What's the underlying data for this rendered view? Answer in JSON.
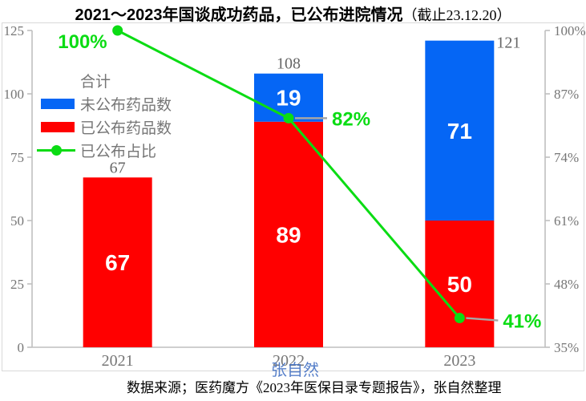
{
  "title": {
    "main": "2021～2023年国谈成功药品，已公布进院情况",
    "note": "（截止23.12.20）"
  },
  "source_text": "数据来源；医药魔方《2023年医保目录专题报告》，张自然整理",
  "watermark_text": "张自然",
  "colors": {
    "red": "#FF0000",
    "blue": "#0566F5",
    "green": "#0BDC14",
    "label_gray": "#767676",
    "axis_line": "#BFBFBF",
    "leader_line": "#A6A6A6",
    "watermark_blue": "#4472C4",
    "bar_value_text": "#FFFFFF",
    "title_black": "#000000"
  },
  "legend": {
    "items": [
      {
        "label": "合计",
        "marker": "none"
      },
      {
        "label": "未公布药品数",
        "marker": "blue-rect"
      },
      {
        "label": "已公布药品数",
        "marker": "red-rect"
      },
      {
        "label": "已公布占比",
        "marker": "green-line-dot"
      }
    ]
  },
  "chart_data": {
    "type": "bar",
    "subtype": "stacked-columns-with-percentage-line",
    "title": "2021～2023年国谈成功药品，已公布进院情况（截止23.12.20）",
    "categories": [
      "2021",
      "2022",
      "2023"
    ],
    "series": [
      {
        "name": "已公布药品数",
        "color": "#FF0000",
        "values": [
          67,
          89,
          50
        ]
      },
      {
        "name": "未公布药品数",
        "color": "#0566F5",
        "values": [
          0,
          19,
          71
        ]
      }
    ],
    "totals": {
      "name": "合计",
      "values": [
        67,
        108,
        121
      ]
    },
    "line_series": {
      "name": "已公布占比",
      "values_pct": [
        100,
        82,
        41
      ],
      "labels": [
        "100%",
        "82%",
        "41%"
      ]
    },
    "left_axis": {
      "ticks": [
        0,
        25,
        50,
        75,
        100,
        125
      ],
      "range": [
        0,
        125
      ]
    },
    "right_axis": {
      "ticks_pct": [
        35,
        48,
        61,
        74,
        87,
        100
      ],
      "tick_labels": [
        "35%",
        "48%",
        "61%",
        "74%",
        "87%",
        "100%"
      ],
      "range": [
        35,
        100
      ]
    },
    "grid": false,
    "legend_position": "inside-upper-left"
  }
}
